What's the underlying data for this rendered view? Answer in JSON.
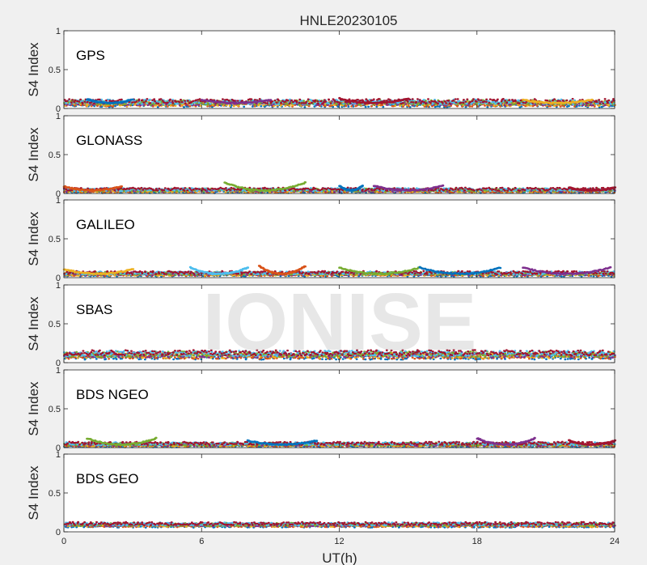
{
  "chart_data": {
    "type": "scatter",
    "title": "HNLE20230105",
    "xlabel": "UT(h)",
    "ylabel": "S4 Index",
    "xlim": [
      0,
      24
    ],
    "ylim": [
      0,
      1
    ],
    "xticks": [
      0,
      6,
      12,
      18,
      24
    ],
    "yticks": [
      0,
      0.5,
      1
    ],
    "grid": false,
    "watermark": "IONISE",
    "series_colors": [
      "#0072BD",
      "#D95319",
      "#EDB120",
      "#7E2F8E",
      "#77AC30",
      "#4DBEEE",
      "#A2142F"
    ],
    "panels": [
      {
        "label": "GPS",
        "baseline": 0.07,
        "noise": 0.03,
        "arcs": [
          [
            1,
            3,
            0.05
          ],
          [
            6,
            9,
            0.04
          ],
          [
            12,
            15,
            0.06
          ],
          [
            20,
            23,
            0.04
          ]
        ]
      },
      {
        "label": "GLONASS",
        "baseline": 0.04,
        "noise": 0.02,
        "arcs": [
          [
            0,
            2.5,
            0.05
          ],
          [
            7,
            10.5,
            0.1
          ],
          [
            12,
            13,
            0.06
          ],
          [
            13.5,
            16.5,
            0.06
          ],
          [
            22,
            24,
            0.04
          ]
        ]
      },
      {
        "label": "GALILEO",
        "baseline": 0.05,
        "noise": 0.02,
        "arcs": [
          [
            0,
            3,
            0.06
          ],
          [
            5.5,
            8,
            0.08
          ],
          [
            8.5,
            10.5,
            0.1
          ],
          [
            12,
            15.5,
            0.08
          ],
          [
            15.5,
            19,
            0.08
          ],
          [
            20,
            23.8,
            0.08
          ]
        ]
      },
      {
        "label": "SBAS",
        "baseline": 0.1,
        "noise": 0.035,
        "arcs": []
      },
      {
        "label": "BDS NGEO",
        "baseline": 0.04,
        "noise": 0.02,
        "arcs": [
          [
            1,
            4,
            0.08
          ],
          [
            8,
            11,
            0.05
          ],
          [
            18,
            20.5,
            0.08
          ],
          [
            22,
            24,
            0.05
          ]
        ]
      },
      {
        "label": "BDS GEO",
        "baseline": 0.09,
        "noise": 0.02,
        "arcs": []
      }
    ]
  }
}
